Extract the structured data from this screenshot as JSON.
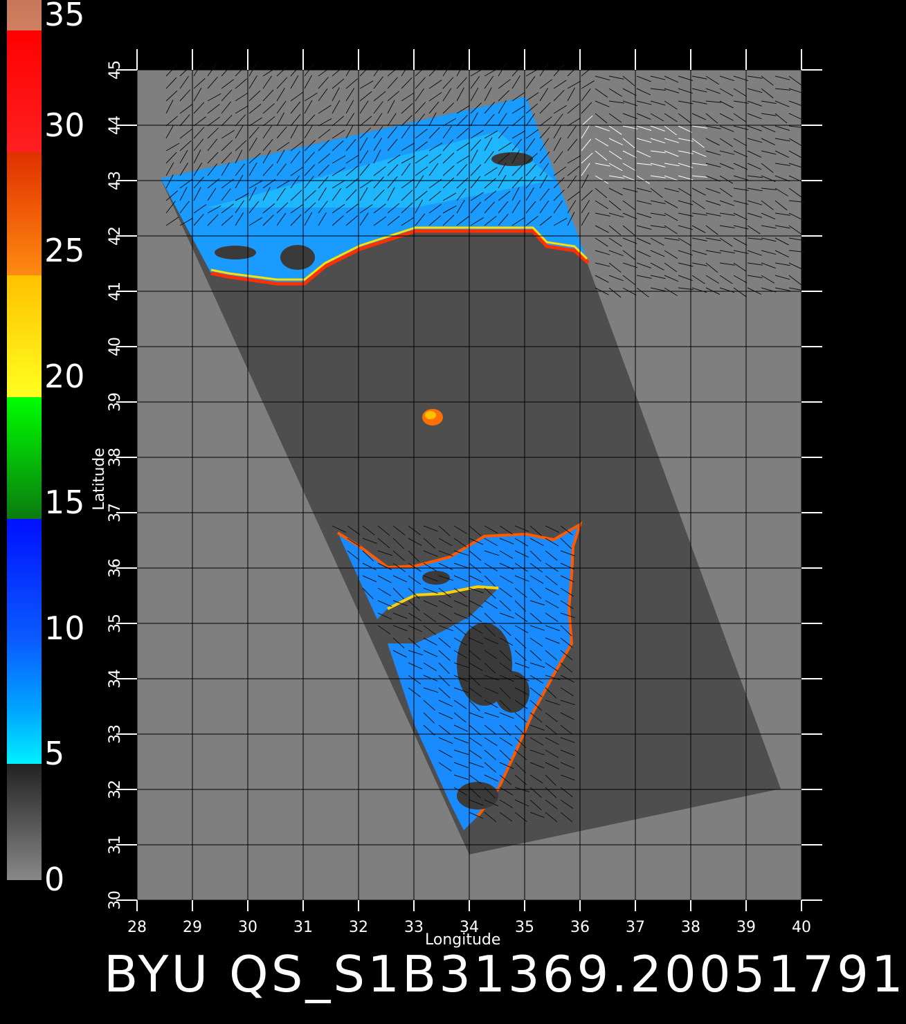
{
  "colorbar": {
    "labels": [
      "35",
      "30",
      "25",
      "20",
      "15",
      "10",
      "5",
      "0"
    ],
    "values": [
      35,
      30,
      25,
      20,
      15,
      10,
      5,
      0
    ]
  },
  "map": {
    "xlabel": "Longitude",
    "ylabel": "Latitude",
    "x_ticks": [
      "28",
      "29",
      "30",
      "31",
      "32",
      "33",
      "34",
      "35",
      "36",
      "37",
      "38",
      "39",
      "40"
    ],
    "y_ticks": [
      "30",
      "31",
      "32",
      "33",
      "34",
      "35",
      "36",
      "37",
      "38",
      "39",
      "40",
      "41",
      "42",
      "43",
      "44",
      "45"
    ],
    "xlim": [
      28,
      40
    ],
    "ylim": [
      30,
      45
    ]
  },
  "caption": "BYU QS_S1B31369.20051791"
}
